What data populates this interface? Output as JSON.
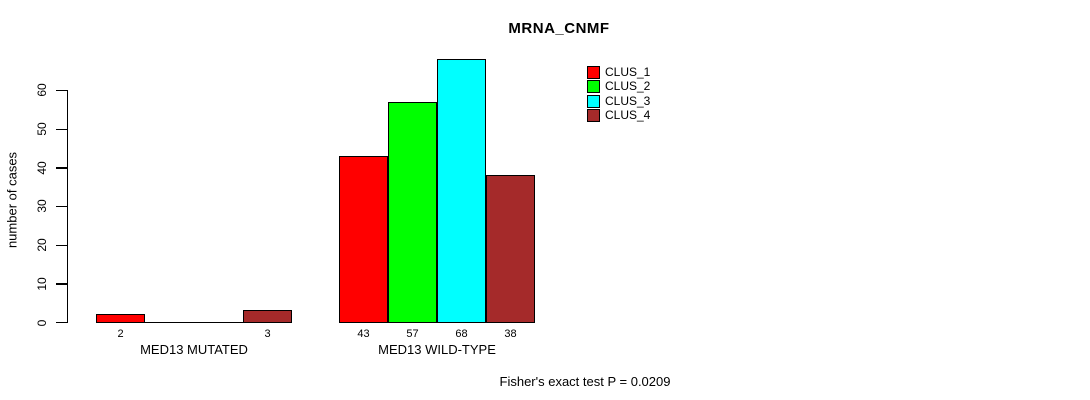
{
  "chart_data": {
    "type": "bar",
    "title": "MRNA_CNMF",
    "ylabel": "number of cases",
    "xlabel": "",
    "annotation": "Fisher's exact test P = 0.0209",
    "categories": [
      "MED13 MUTATED",
      "MED13 WILD-TYPE"
    ],
    "series": [
      {
        "name": "CLUS_1",
        "color": "#FF0000",
        "values": [
          2,
          43
        ]
      },
      {
        "name": "CLUS_2",
        "color": "#00FF00",
        "values": [
          0,
          57
        ]
      },
      {
        "name": "CLUS_3",
        "color": "#00FFFF",
        "values": [
          0,
          68
        ]
      },
      {
        "name": "CLUS_4",
        "color": "#A52A2A",
        "values": [
          3,
          38
        ]
      }
    ],
    "bar_value_labels": [
      [
        "2",
        "",
        "",
        "3"
      ],
      [
        "43",
        "57",
        "68",
        "38"
      ]
    ],
    "yticks": [
      0,
      10,
      20,
      30,
      40,
      50,
      60
    ],
    "ylim": [
      0,
      60
    ],
    "grid": false,
    "legend_position": "top-right",
    "legend_entries": [
      "CLUS_1",
      "CLUS_2",
      "CLUS_3",
      "CLUS_4"
    ],
    "axis_color": "#000000",
    "background_color": "#FFFFFF"
  }
}
